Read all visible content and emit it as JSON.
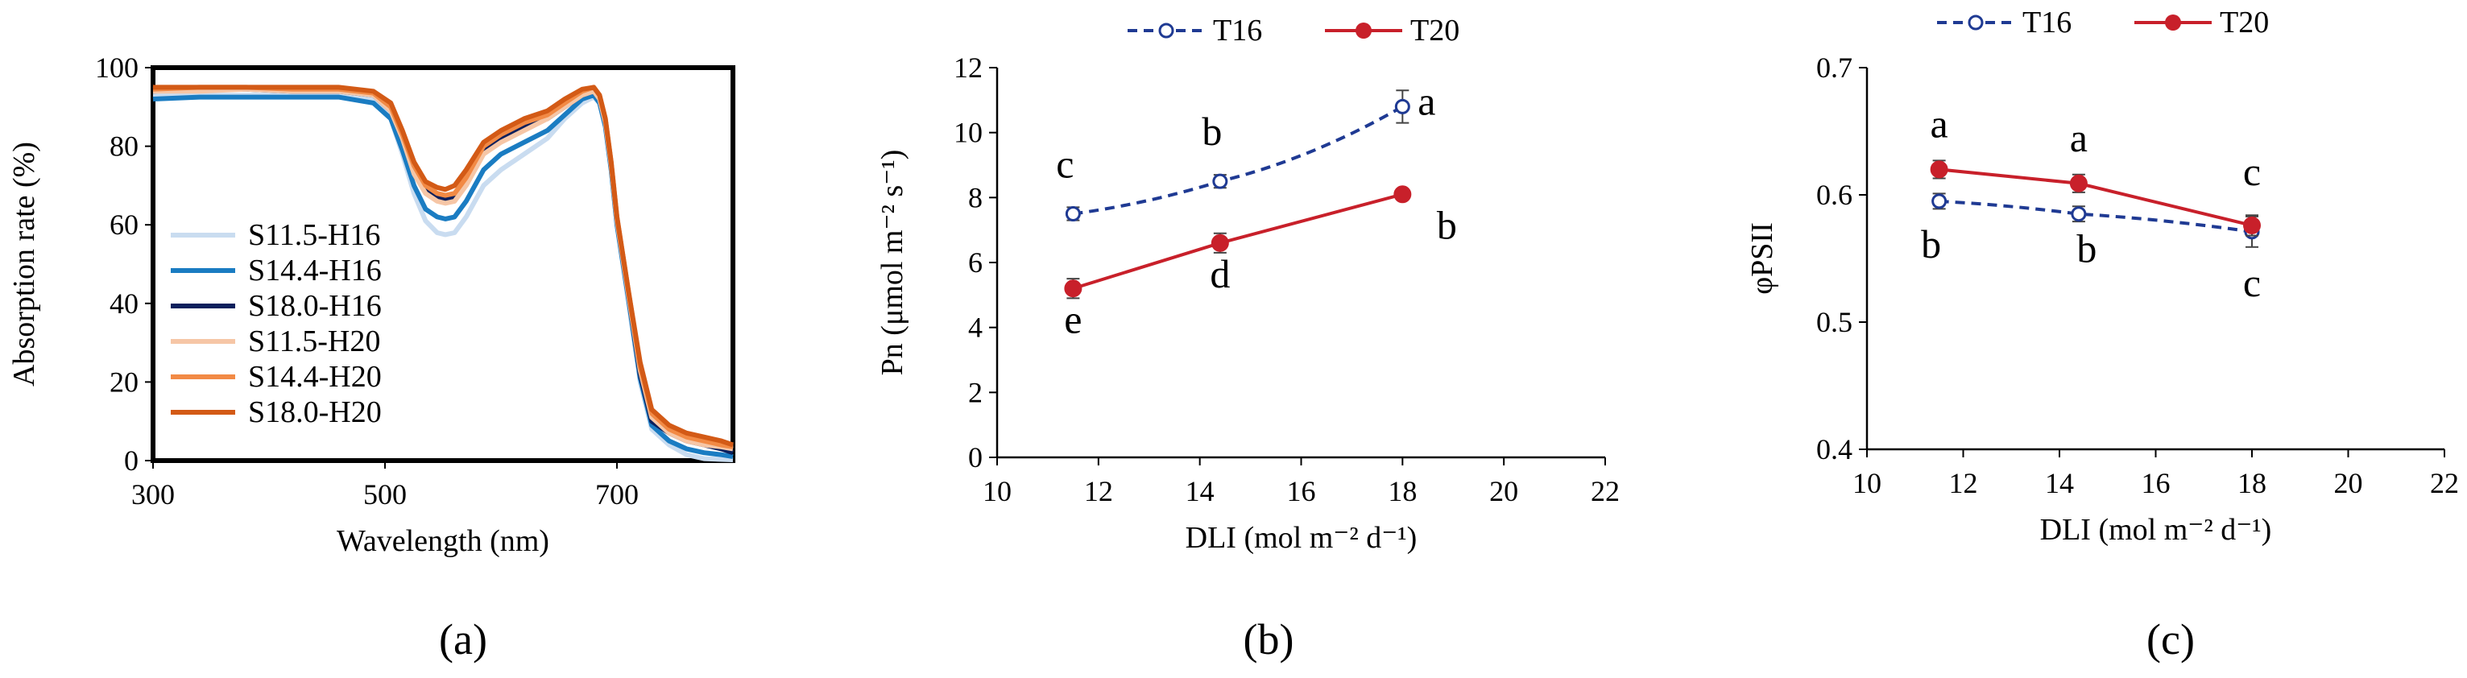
{
  "chart_data": [
    {
      "type": "line",
      "panel_label": "(a)",
      "xlabel": "Wavelength (nm)",
      "ylabel": "Absorption rate (%)",
      "xlim": [
        300,
        800
      ],
      "ylim": [
        0,
        100
      ],
      "xticks": [
        "300",
        "500",
        "700"
      ],
      "xtick_values": [
        300,
        500,
        700
      ],
      "yticks": [
        "0",
        "20",
        "40",
        "60",
        "80",
        "100"
      ],
      "ytick_values": [
        0,
        20,
        40,
        60,
        80,
        100
      ],
      "legend_position": "left-bottom",
      "series": [
        {
          "name": "S11.5-H16",
          "color": "#c9dcf0",
          "x": [
            300,
            340,
            380,
            420,
            460,
            490,
            505,
            515,
            525,
            535,
            545,
            552,
            560,
            570,
            585,
            600,
            620,
            640,
            655,
            670,
            680,
            685,
            690,
            695,
            700,
            710,
            720,
            730,
            745,
            760,
            775,
            790,
            800
          ],
          "y": [
            93,
            93,
            93,
            93,
            93,
            92,
            87,
            78,
            68,
            61,
            58,
            57.5,
            58,
            62,
            70,
            74,
            78,
            82,
            87,
            91,
            92.5,
            91,
            85,
            74,
            60,
            40,
            20,
            8,
            4,
            1.5,
            0.5,
            0.3,
            0.2
          ]
        },
        {
          "name": "S14.4-H16",
          "color": "#1a7cc2",
          "x": [
            300,
            340,
            380,
            420,
            460,
            490,
            505,
            515,
            525,
            535,
            545,
            552,
            560,
            570,
            585,
            600,
            620,
            640,
            655,
            670,
            680,
            685,
            690,
            695,
            700,
            710,
            720,
            730,
            745,
            760,
            775,
            790,
            800
          ],
          "y": [
            92,
            92.5,
            92.5,
            92.5,
            92.5,
            91,
            87,
            79,
            70,
            64,
            62,
            61.5,
            62,
            66,
            74,
            78,
            81,
            84,
            88,
            92,
            93,
            91,
            85,
            74,
            60,
            41,
            21,
            9,
            5,
            3,
            2,
            1.5,
            1
          ]
        },
        {
          "name": "S18.0-H16",
          "color": "#0a1f5c",
          "x": [
            300,
            340,
            380,
            420,
            460,
            490,
            505,
            515,
            525,
            535,
            545,
            552,
            560,
            570,
            585,
            600,
            620,
            640,
            655,
            670,
            680,
            685,
            690,
            695,
            700,
            710,
            720,
            730,
            745,
            760,
            775,
            790,
            800
          ],
          "y": [
            94,
            94.5,
            94.5,
            94,
            94,
            93,
            89,
            82,
            74,
            69,
            67,
            66.5,
            67,
            71,
            79,
            82,
            85,
            87,
            90,
            93,
            94,
            92,
            86,
            75,
            61,
            42,
            22,
            10,
            7,
            5,
            4,
            3,
            2
          ]
        },
        {
          "name": "S11.5-H20",
          "color": "#f6c6a6",
          "x": [
            300,
            340,
            380,
            420,
            460,
            490,
            505,
            515,
            525,
            535,
            545,
            552,
            560,
            570,
            585,
            600,
            620,
            640,
            655,
            670,
            680,
            685,
            690,
            695,
            700,
            710,
            720,
            730,
            745,
            760,
            775,
            790,
            800
          ],
          "y": [
            94,
            94,
            94.5,
            94,
            94,
            93,
            89,
            82,
            73,
            68,
            66,
            65.5,
            66,
            70,
            78,
            81,
            84,
            87,
            90,
            93,
            94,
            92,
            86,
            75,
            61,
            42,
            23,
            11,
            7,
            5,
            4,
            3.5,
            3
          ]
        },
        {
          "name": "S14.4-H20",
          "color": "#f28a45",
          "x": [
            300,
            340,
            380,
            420,
            460,
            490,
            505,
            515,
            525,
            535,
            545,
            552,
            560,
            570,
            585,
            600,
            620,
            640,
            655,
            670,
            680,
            685,
            690,
            695,
            700,
            710,
            720,
            730,
            745,
            760,
            775,
            790,
            800
          ],
          "y": [
            94.5,
            95,
            95,
            94.5,
            94.5,
            93.5,
            90,
            83,
            75,
            70,
            68,
            67.5,
            68,
            72,
            80,
            83,
            86,
            88,
            91,
            94,
            95,
            93,
            87,
            76,
            62,
            43,
            24,
            12,
            8,
            6,
            5,
            4,
            3.5
          ]
        },
        {
          "name": "S18.0-H20",
          "color": "#d35a16",
          "x": [
            300,
            340,
            380,
            420,
            460,
            490,
            505,
            515,
            525,
            535,
            545,
            552,
            560,
            570,
            585,
            600,
            620,
            640,
            655,
            670,
            680,
            685,
            690,
            695,
            700,
            710,
            720,
            730,
            745,
            760,
            775,
            790,
            800
          ],
          "y": [
            95,
            95,
            95,
            95,
            95,
            94,
            91,
            84,
            76,
            71,
            69.5,
            69,
            70,
            74,
            81,
            84,
            87,
            89,
            92,
            94.5,
            95,
            93,
            87,
            76,
            62,
            43,
            25,
            13,
            9,
            7,
            6,
            5,
            4
          ]
        }
      ]
    },
    {
      "type": "line",
      "panel_label": "(b)",
      "xlabel": "DLI (mol m⁻² d⁻¹)",
      "ylabel": "Pn (μmol m⁻² s⁻¹)",
      "xlim": [
        10,
        22
      ],
      "ylim": [
        0,
        12
      ],
      "xticks": [
        "10",
        "12",
        "14",
        "16",
        "18",
        "20",
        "22"
      ],
      "xtick_values": [
        10,
        12,
        14,
        16,
        18,
        20,
        22
      ],
      "yticks": [
        "0",
        "2",
        "4",
        "6",
        "8",
        "10",
        "12"
      ],
      "ytick_values": [
        0,
        2,
        4,
        6,
        8,
        10,
        12
      ],
      "legend_position": "top",
      "series": [
        {
          "name": "T16",
          "color": "#1f3a93",
          "style": "dashed",
          "marker": "open-circle",
          "x": [
            11.5,
            14.4,
            18.0
          ],
          "y": [
            7.5,
            8.5,
            10.8
          ],
          "error": [
            0.2,
            0.2,
            0.5
          ],
          "letters": [
            "c",
            "b",
            "a"
          ]
        },
        {
          "name": "T20",
          "color": "#c8202a",
          "style": "solid",
          "marker": "filled-circle",
          "x": [
            11.5,
            14.4,
            18.0
          ],
          "y": [
            5.2,
            6.6,
            8.1
          ],
          "error": [
            0.3,
            0.3,
            0.1
          ],
          "letters": [
            "e",
            "d",
            "b"
          ]
        }
      ]
    },
    {
      "type": "line",
      "panel_label": "(c)",
      "xlabel": "DLI (mol m⁻² d⁻¹)",
      "ylabel": "φPSII",
      "xlim": [
        10,
        22
      ],
      "ylim": [
        0.4,
        0.7
      ],
      "xticks": [
        "10",
        "12",
        "14",
        "16",
        "18",
        "20",
        "22"
      ],
      "xtick_values": [
        10,
        12,
        14,
        16,
        18,
        20,
        22
      ],
      "yticks": [
        "0.4",
        "0.5",
        "0.6",
        "0.7"
      ],
      "ytick_values": [
        0.4,
        0.5,
        0.6,
        0.7
      ],
      "legend_position": "top",
      "series": [
        {
          "name": "T16",
          "color": "#1f3a93",
          "style": "dashed",
          "marker": "open-circle",
          "x": [
            11.5,
            14.4,
            18.0
          ],
          "y": [
            0.595,
            0.585,
            0.571
          ],
          "error": [
            0.006,
            0.006,
            0.012
          ],
          "letters": [
            "b",
            "b",
            "c"
          ]
        },
        {
          "name": "T20",
          "color": "#c8202a",
          "style": "solid",
          "marker": "filled-circle",
          "x": [
            11.5,
            14.4,
            18.0
          ],
          "y": [
            0.62,
            0.609,
            0.576
          ],
          "error": [
            0.007,
            0.007,
            0.008
          ],
          "letters": [
            "a",
            "a",
            "c"
          ]
        }
      ]
    }
  ]
}
